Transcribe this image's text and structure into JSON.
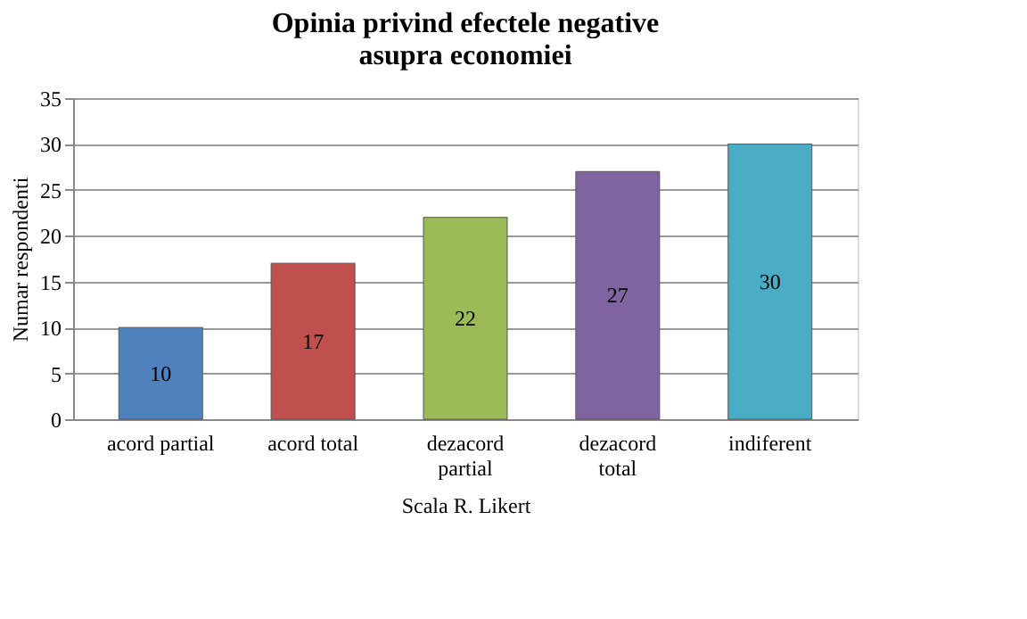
{
  "chart_data": {
    "type": "bar",
    "title": [
      "Opinia privind efectele negative",
      "asupra economiei"
    ],
    "categories": [
      "acord partial",
      "acord total",
      "dezacord partial",
      "dezacord total",
      "indiferent"
    ],
    "values": [
      10,
      17,
      22,
      27,
      30
    ],
    "colors": [
      "#4f81bd",
      "#c0504d",
      "#9bbb59",
      "#8064a2",
      "#4bacc6"
    ],
    "ylim": [
      0,
      35
    ],
    "yticks": [
      0,
      5,
      10,
      15,
      20,
      25,
      30,
      35
    ],
    "grid": "y",
    "data_labels": true,
    "xlabel": "Scala R. Likert",
    "ylabel": "Numar respondenti"
  }
}
